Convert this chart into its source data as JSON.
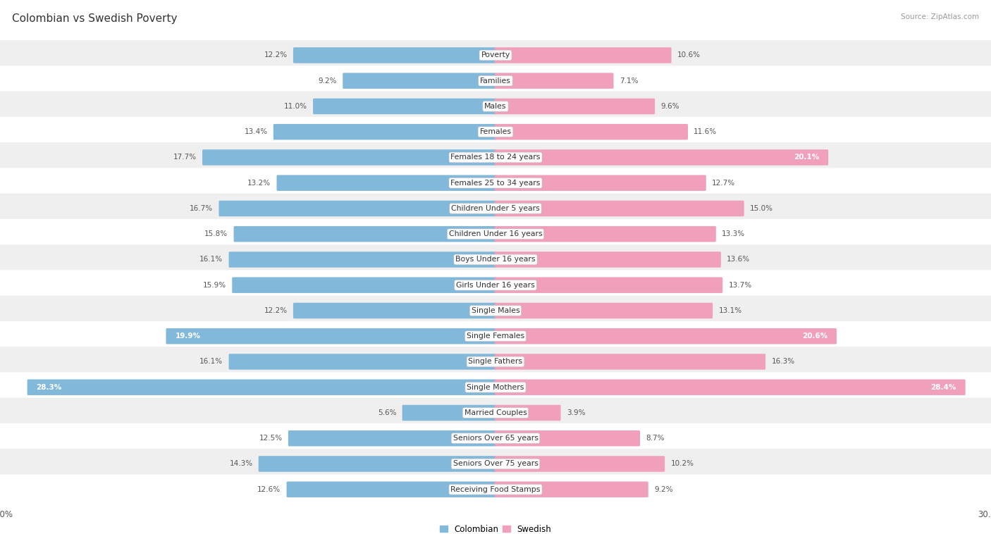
{
  "title": "Colombian vs Swedish Poverty",
  "source": "Source: ZipAtlas.com",
  "categories": [
    "Poverty",
    "Families",
    "Males",
    "Females",
    "Females 18 to 24 years",
    "Females 25 to 34 years",
    "Children Under 5 years",
    "Children Under 16 years",
    "Boys Under 16 years",
    "Girls Under 16 years",
    "Single Males",
    "Single Females",
    "Single Fathers",
    "Single Mothers",
    "Married Couples",
    "Seniors Over 65 years",
    "Seniors Over 75 years",
    "Receiving Food Stamps"
  ],
  "colombian": [
    12.2,
    9.2,
    11.0,
    13.4,
    17.7,
    13.2,
    16.7,
    15.8,
    16.1,
    15.9,
    12.2,
    19.9,
    16.1,
    28.3,
    5.6,
    12.5,
    14.3,
    12.6
  ],
  "swedish": [
    10.6,
    7.1,
    9.6,
    11.6,
    20.1,
    12.7,
    15.0,
    13.3,
    13.6,
    13.7,
    13.1,
    20.6,
    16.3,
    28.4,
    3.9,
    8.7,
    10.2,
    9.2
  ],
  "colombian_color": "#82B8DA",
  "swedish_color": "#F0A0BB",
  "axis_max": 30.0,
  "title_fontsize": 11,
  "label_fontsize": 7.8,
  "value_fontsize": 7.5,
  "legend_fontsize": 8.5,
  "bg_row_color": "#efefef",
  "bg_alt_row_color": "#ffffff",
  "highlight_threshold": 18.5
}
